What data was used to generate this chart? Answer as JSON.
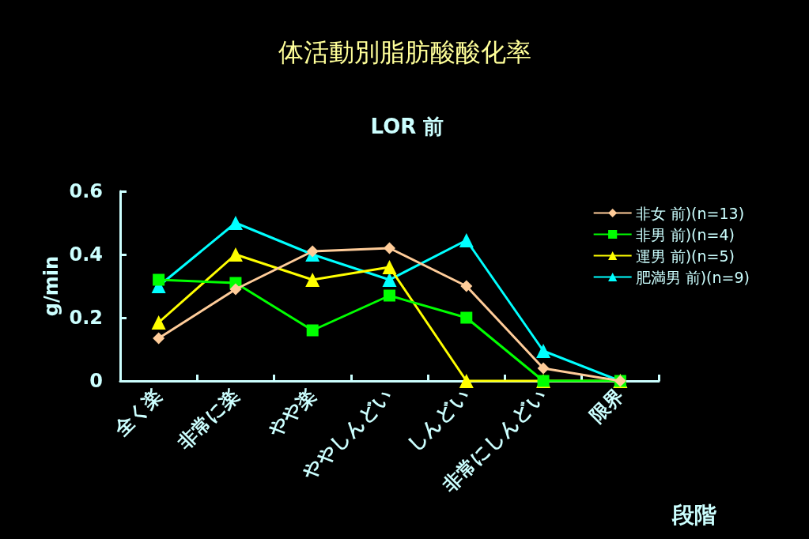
{
  "chart_data": {
    "type": "line",
    "title": "体活動別脂肪酸酸化率",
    "subtitle": "LOR 前",
    "xlabel": "段階",
    "ylabel": "g/min",
    "categories": [
      "全く楽",
      "非常に楽",
      "やや楽",
      "ややしんどい",
      "しんどい",
      "非常にしんどい",
      "限界"
    ],
    "series": [
      {
        "name": "非女 前)(n=13)",
        "color": "#ffcc99",
        "marker": "diamond",
        "values": [
          0.135,
          0.29,
          0.41,
          0.42,
          0.3,
          0.04,
          0
        ]
      },
      {
        "name": "非男 前)(n=4)",
        "color": "#00ff00",
        "marker": "square",
        "values": [
          0.32,
          0.31,
          0.16,
          0.27,
          0.2,
          0,
          0
        ]
      },
      {
        "name": "運男 前)(n=5)",
        "color": "#ffff00",
        "marker": "triangle",
        "values": [
          0.185,
          0.4,
          0.32,
          0.36,
          0,
          0,
          0
        ]
      },
      {
        "name": "肥満男 前)(n=9)",
        "color": "#00ffff",
        "marker": "triangle",
        "values": [
          0.3,
          0.5,
          0.4,
          0.32,
          0.445,
          0.095,
          0
        ]
      }
    ],
    "ylim": [
      0,
      0.6
    ],
    "yticks": [
      0,
      0.2,
      0.4,
      0.6
    ],
    "grid": false,
    "legend": "top right",
    "line_style": "solid"
  }
}
